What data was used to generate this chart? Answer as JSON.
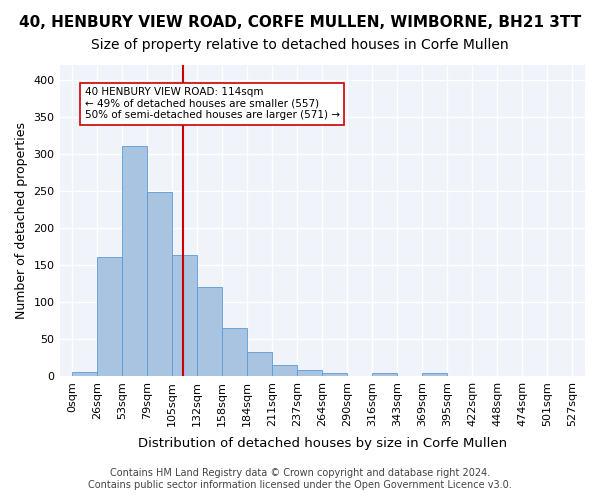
{
  "title": "40, HENBURY VIEW ROAD, CORFE MULLEN, WIMBORNE, BH21 3TT",
  "subtitle": "Size of property relative to detached houses in Corfe Mullen",
  "xlabel": "Distribution of detached houses by size in Corfe Mullen",
  "ylabel": "Number of detached properties",
  "footer_line1": "Contains HM Land Registry data © Crown copyright and database right 2024.",
  "footer_line2": "Contains public sector information licensed under the Open Government Licence v3.0.",
  "bin_labels": [
    "0sqm",
    "26sqm",
    "53sqm",
    "79sqm",
    "105sqm",
    "132sqm",
    "158sqm",
    "184sqm",
    "211sqm",
    "237sqm",
    "264sqm",
    "290sqm",
    "316sqm",
    "343sqm",
    "369sqm",
    "395sqm",
    "422sqm",
    "448sqm",
    "474sqm",
    "501sqm",
    "527sqm"
  ],
  "bar_values": [
    5,
    160,
    310,
    248,
    163,
    120,
    65,
    32,
    15,
    8,
    4,
    0,
    4,
    0,
    4,
    0,
    0,
    0,
    0,
    0
  ],
  "bar_color": "#a8c4e0",
  "bar_edge_color": "#5b9bd5",
  "vline_x": 4.45,
  "vline_color": "#cc0000",
  "annotation_text": "40 HENBURY VIEW ROAD: 114sqm\n← 49% of detached houses are smaller (557)\n50% of semi-detached houses are larger (571) →",
  "annotation_box_color": "#ffffff",
  "annotation_box_edge": "#cc0000",
  "ylim": [
    0,
    420
  ],
  "yticks": [
    0,
    50,
    100,
    150,
    200,
    250,
    300,
    350,
    400
  ],
  "bg_color": "#f0f4fa",
  "grid_color": "#ffffff",
  "title_fontsize": 11,
  "subtitle_fontsize": 10,
  "axis_label_fontsize": 9,
  "tick_fontsize": 8,
  "footer_fontsize": 7
}
